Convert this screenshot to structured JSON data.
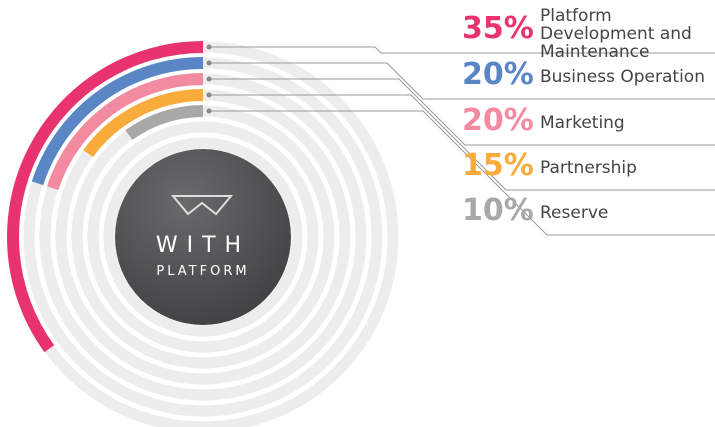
{
  "chart_data": {
    "type": "radial_bar",
    "center_title": "WITH",
    "center_subtitle": "PLATFORM",
    "categories": [
      "Platform Development and Maintenance",
      "Business Operation",
      "Marketing",
      "Partnership",
      "Reserve"
    ],
    "values": [
      35,
      20,
      20,
      15,
      10
    ],
    "value_labels": [
      "35%",
      "20%",
      "20%",
      "15%",
      "10%"
    ],
    "colors": [
      "#e8336f",
      "#5b86c5",
      "#f28aa0",
      "#f9ac3c",
      "#a8a8a8"
    ]
  }
}
